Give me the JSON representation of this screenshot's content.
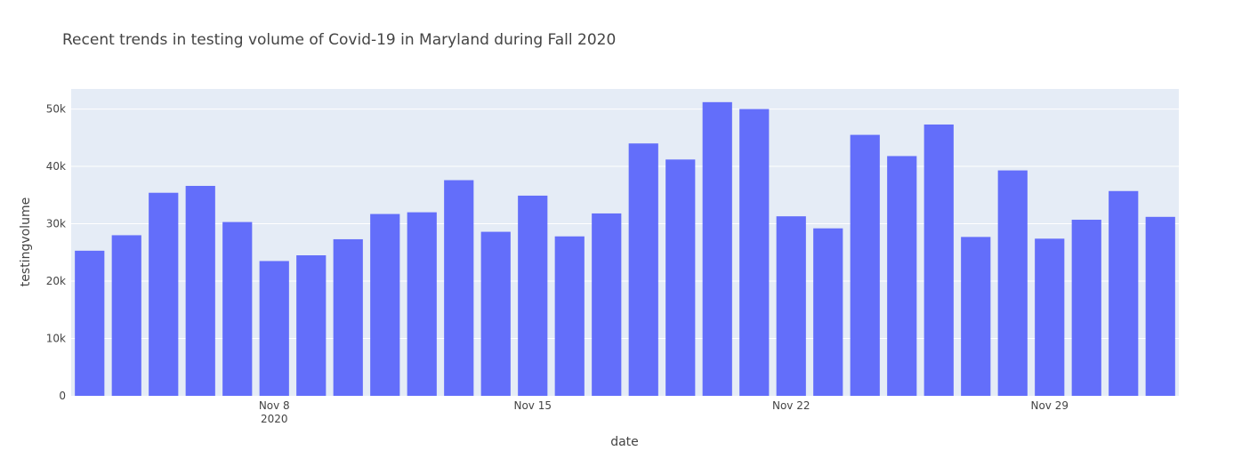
{
  "chart_data": {
    "type": "bar",
    "title": "Recent trends in testing volume of Covid-19 in Maryland during Fall 2020",
    "xlabel": "date",
    "ylabel": "testingvolume",
    "bar_color": "#636efa",
    "plot_background": "#e5ecf6",
    "grid": true,
    "ylim": [
      0,
      53500
    ],
    "y_ticks": [
      0,
      10000,
      20000,
      30000,
      40000,
      50000
    ],
    "y_tick_labels": [
      "0",
      "10k",
      "20k",
      "30k",
      "40k",
      "50k"
    ],
    "x_ticks": [
      {
        "date": "2020-11-08",
        "label": "Nov 8",
        "sublabel": "2020"
      },
      {
        "date": "2020-11-15",
        "label": "Nov 15",
        "sublabel": ""
      },
      {
        "date": "2020-11-22",
        "label": "Nov 22",
        "sublabel": ""
      },
      {
        "date": "2020-11-29",
        "label": "Nov 29",
        "sublabel": ""
      }
    ],
    "x": [
      "2020-11-03",
      "2020-11-04",
      "2020-11-05",
      "2020-11-06",
      "2020-11-07",
      "2020-11-08",
      "2020-11-09",
      "2020-11-10",
      "2020-11-11",
      "2020-11-12",
      "2020-11-13",
      "2020-11-14",
      "2020-11-15",
      "2020-11-16",
      "2020-11-17",
      "2020-11-18",
      "2020-11-19",
      "2020-11-20",
      "2020-11-21",
      "2020-11-22",
      "2020-11-23",
      "2020-11-24",
      "2020-11-25",
      "2020-11-26",
      "2020-11-27",
      "2020-11-28",
      "2020-11-29",
      "2020-11-30",
      "2020-12-01",
      "2020-12-02"
    ],
    "values": [
      25300,
      28000,
      35400,
      36600,
      30300,
      23500,
      24500,
      27300,
      31700,
      32000,
      37600,
      28600,
      34900,
      27800,
      31800,
      44000,
      41200,
      51200,
      50000,
      31300,
      29200,
      45500,
      41800,
      47300,
      27700,
      39300,
      27400,
      30700,
      35700,
      31200
    ]
  }
}
